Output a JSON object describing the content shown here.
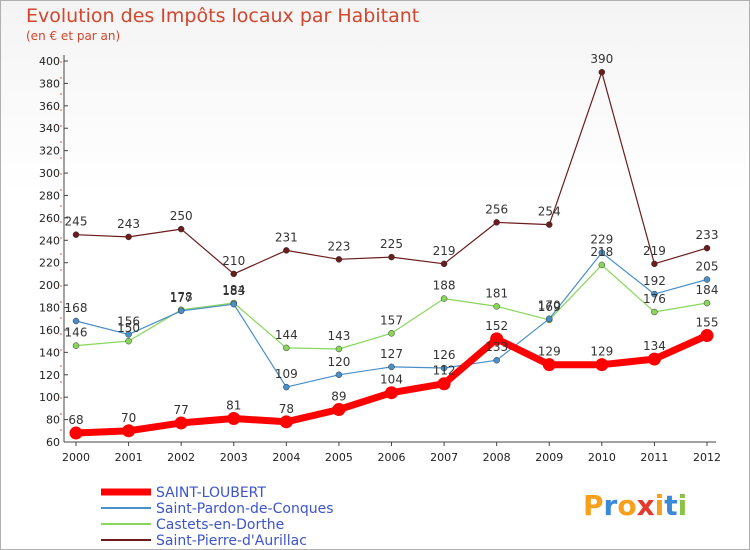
{
  "header": {
    "title": "Evolution des Impôts locaux par Habitant",
    "subtitle": "(en € et par an)"
  },
  "logo": {
    "text": "Proxiti"
  },
  "chart_data": {
    "type": "line",
    "title": "Evolution des Impôts locaux par Habitant",
    "subtitle": "(en € et par an)",
    "xlabel": "",
    "ylabel": "",
    "x": [
      "2000",
      "2001",
      "2002",
      "2003",
      "2004",
      "2005",
      "2006",
      "2007",
      "2008",
      "2009",
      "2010",
      "2011",
      "2012"
    ],
    "ylim": [
      60,
      400
    ],
    "yticks": [
      60,
      80,
      100,
      120,
      140,
      160,
      180,
      200,
      220,
      240,
      260,
      280,
      300,
      320,
      340,
      360,
      380,
      400
    ],
    "grid": false,
    "legend": "bottom-left",
    "series": [
      {
        "name": "Saint-Pierre-d'Aurillac",
        "color": "#6b1c1c",
        "width": 1.2,
        "values": [
          245,
          243,
          250,
          210,
          231,
          223,
          225,
          219,
          256,
          254,
          390,
          219,
          233
        ]
      },
      {
        "name": "Castets-en-Dorthe",
        "color": "#88d65c",
        "width": 1.2,
        "values": [
          146,
          150,
          178,
          184,
          144,
          143,
          157,
          188,
          181,
          169,
          218,
          176,
          184
        ]
      },
      {
        "name": "Saint-Pardon-de-Conques",
        "color": "#4a8fc8",
        "width": 1.2,
        "values": [
          168,
          156,
          177,
          183,
          109,
          120,
          127,
          126,
          133,
          170,
          229,
          192,
          205
        ]
      },
      {
        "name": "SAINT-LOUBERT",
        "color": "#ff0000",
        "width": 7,
        "values": [
          68,
          70,
          77,
          81,
          78,
          89,
          104,
          112,
          152,
          129,
          129,
          134,
          155
        ]
      }
    ],
    "legend_order": [
      "SAINT-LOUBERT",
      "Saint-Pardon-de-Conques",
      "Castets-en-Dorthe",
      "Saint-Pierre-d'Aurillac"
    ],
    "data_labels": [
      {
        "series": "Saint-Pierre-d'Aurillac",
        "labels": [
          "245",
          "243",
          "250",
          "210",
          "231",
          "223",
          "225",
          "219",
          "256",
          "254",
          "390",
          "219",
          "233"
        ]
      },
      {
        "series": "Castets-en-Dorthe",
        "labels": [
          "146",
          "150",
          "178",
          "184",
          "144",
          "143",
          "157",
          "188",
          "181",
          "169",
          "218",
          "176",
          "184"
        ]
      },
      {
        "series": "Saint-Pardon-de-Conques",
        "labels": [
          "168",
          "156",
          "177",
          "183",
          "109",
          "120",
          "127",
          "126",
          "133",
          "170",
          "229",
          "192",
          "205"
        ]
      },
      {
        "series": "SAINT-LOUBERT",
        "labels": [
          "68",
          "70",
          "77",
          "81",
          "78",
          "89",
          "104",
          "112",
          "152",
          "129",
          "129",
          "134",
          "155"
        ]
      }
    ]
  }
}
